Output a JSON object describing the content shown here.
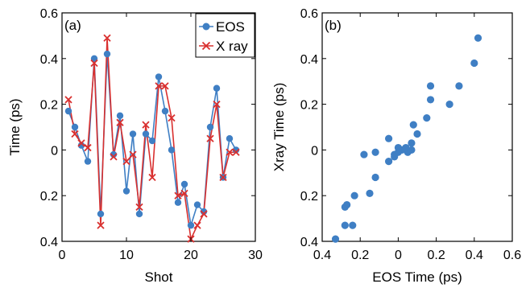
{
  "chart_data": [
    {
      "type": "line",
      "panel_label": "(a)",
      "xlabel": "Shot",
      "ylabel": "Time (ps)",
      "xlim": [
        0,
        30
      ],
      "ylim": [
        -0.4,
        0.6
      ],
      "xticks": [
        0,
        10,
        20,
        30
      ],
      "yticks": [
        -0.4,
        -0.2,
        0,
        0.2,
        0.4,
        0.6
      ],
      "xtick_labels": [
        "0",
        "10",
        "20",
        "30"
      ],
      "ytick_labels": [
        "0.4",
        "0.2",
        "0",
        "0.2",
        "0.4",
        "0.6"
      ],
      "legend_position": "top-right",
      "x": [
        1,
        2,
        3,
        4,
        5,
        6,
        7,
        8,
        9,
        10,
        11,
        12,
        13,
        14,
        15,
        16,
        17,
        18,
        19,
        20,
        21,
        22,
        23,
        24,
        25,
        26,
        27
      ],
      "series": [
        {
          "name": "EOS",
          "color": "#3f7fc4",
          "marker": "circle",
          "values": [
            0.17,
            0.1,
            0.02,
            -0.05,
            0.4,
            -0.28,
            0.42,
            -0.02,
            0.15,
            -0.18,
            0.07,
            -0.28,
            0.07,
            0.04,
            0.32,
            0.17,
            0.0,
            -0.23,
            -0.15,
            -0.33,
            -0.24,
            -0.27,
            0.1,
            0.27,
            -0.12,
            0.05,
            0.0
          ]
        },
        {
          "name": "X ray",
          "color": "#d9302f",
          "marker": "x",
          "values": [
            0.22,
            0.07,
            0.03,
            0.01,
            0.38,
            -0.33,
            0.49,
            -0.03,
            0.12,
            -0.05,
            -0.02,
            -0.25,
            0.11,
            -0.12,
            0.28,
            0.28,
            0.14,
            -0.2,
            -0.19,
            -0.39,
            -0.33,
            -0.28,
            0.05,
            0.2,
            -0.12,
            -0.01,
            -0.01
          ]
        }
      ]
    },
    {
      "type": "scatter",
      "panel_label": "(b)",
      "xlabel": "EOS Time (ps)",
      "ylabel": "Xray Time (ps)",
      "xlim": [
        -0.4,
        0.6
      ],
      "ylim": [
        -0.4,
        0.6
      ],
      "xticks": [
        -0.4,
        -0.2,
        0,
        0.2,
        0.4,
        0.6
      ],
      "yticks": [
        -0.4,
        -0.2,
        0,
        0.2,
        0.4,
        0.6
      ],
      "xtick_labels": [
        "0.4",
        "0.2",
        "0",
        "0.2",
        "0.4",
        "0.6"
      ],
      "ytick_labels": [
        "0.4",
        "0.2",
        "0",
        "0.2",
        "0.4",
        "0.6"
      ],
      "series": [
        {
          "color": "#3f7fc4",
          "x": [
            0.42,
            0.4,
            0.32,
            0.27,
            0.17,
            0.17,
            0.15,
            0.1,
            0.08,
            0.07,
            0.07,
            0.05,
            0.04,
            0.02,
            0.0,
            0.0,
            -0.02,
            -0.02,
            -0.05,
            -0.05,
            -0.12,
            -0.12,
            -0.15,
            -0.18,
            -0.23,
            -0.24,
            -0.27,
            -0.28,
            -0.28,
            -0.33
          ],
          "y": [
            0.49,
            0.38,
            0.28,
            0.2,
            0.28,
            0.22,
            0.14,
            0.07,
            0.11,
            0.03,
            0.0,
            -0.01,
            0.01,
            0.0,
            0.01,
            -0.01,
            -0.02,
            -0.03,
            -0.05,
            0.05,
            -0.01,
            -0.12,
            -0.19,
            -0.02,
            -0.2,
            -0.33,
            -0.24,
            -0.25,
            -0.33,
            -0.39
          ]
        }
      ]
    }
  ]
}
